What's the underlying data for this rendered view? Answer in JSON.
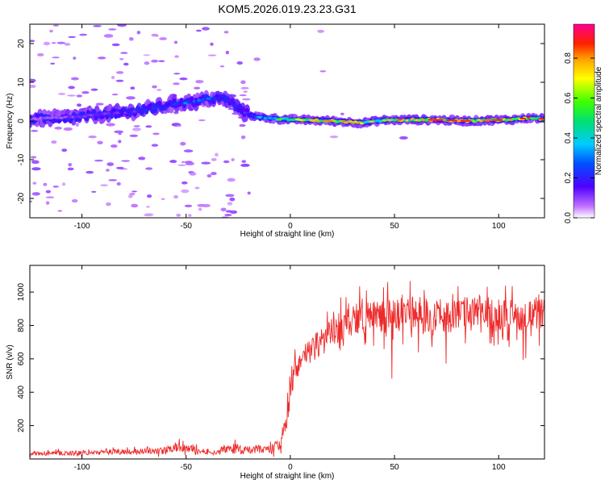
{
  "title": "KOM5.2026.019.23.23.G31",
  "colors": {
    "snr_line": "#ee2a2a",
    "frame": "#000000",
    "background": "#ffffff"
  },
  "chart_data": [
    {
      "type": "heatmap",
      "title": "KOM5.2026.019.23.23.G31",
      "xlabel": "Height of straight line (km)",
      "ylabel": "Frequency (Hz)",
      "xlim": [
        -125,
        122
      ],
      "ylim": [
        -25,
        25
      ],
      "xticks": [
        -100,
        -50,
        0,
        50,
        100
      ],
      "yticks": [
        -20,
        -10,
        0,
        10,
        20
      ],
      "colorbar": {
        "label": "Normalized spectral amplitude",
        "range": [
          0,
          0.97
        ],
        "ticks": [
          0.0,
          0.2,
          0.4,
          0.6,
          0.8
        ],
        "colormap": "rainbow (white-violet-blue-cyan-green-yellow-red-magenta)"
      },
      "ridge": {
        "description": "dominant frequency ridge",
        "x": [
          -125,
          -110,
          -95,
          -85,
          -75,
          -65,
          -55,
          -45,
          -38,
          -30,
          -22,
          -15,
          -5,
          5,
          20,
          35,
          45,
          55,
          70,
          85,
          95,
          105,
          115,
          122
        ],
        "freq": [
          0.5,
          0.8,
          1.5,
          2.0,
          2.5,
          3.5,
          4.5,
          5.0,
          5.8,
          5.5,
          2.0,
          1.0,
          0.5,
          0.3,
          0.0,
          -0.5,
          0.2,
          0.3,
          0.3,
          0.0,
          0.2,
          0.3,
          0.8,
          0.5
        ],
        "amplitude": [
          0.1,
          0.12,
          0.15,
          0.18,
          0.2,
          0.25,
          0.3,
          0.35,
          0.3,
          0.25,
          0.2,
          0.35,
          0.5,
          0.65,
          0.75,
          0.7,
          0.65,
          0.8,
          0.9,
          0.8,
          0.75,
          0.85,
          0.9,
          0.8
        ]
      },
      "grid": false
    },
    {
      "type": "line",
      "xlabel": "Height of straight line (km)",
      "ylabel": "SNR (v/v)",
      "xlim": [
        -125,
        122
      ],
      "ylim": [
        0,
        1160
      ],
      "xticks": [
        -100,
        -50,
        0,
        50,
        100
      ],
      "yticks": [
        200,
        400,
        600,
        800,
        1000
      ],
      "series": [
        {
          "x": [
            -125,
            -110,
            -100,
            -90,
            -80,
            -70,
            -60,
            -55,
            -50,
            -45,
            -40,
            -35,
            -30,
            -25,
            -20,
            -15,
            -10,
            -5,
            -2,
            0,
            2,
            5,
            10,
            15,
            20,
            25,
            30,
            35,
            40,
            50,
            60,
            70,
            80,
            90,
            100,
            110,
            122
          ],
          "values": [
            30,
            35,
            35,
            40,
            45,
            45,
            50,
            70,
            60,
            50,
            45,
            40,
            70,
            60,
            50,
            60,
            60,
            80,
            200,
            400,
            520,
            600,
            650,
            700,
            750,
            800,
            840,
            850,
            860,
            860,
            870,
            860,
            860,
            880,
            870,
            860,
            870
          ],
          "noise": [
            15,
            20,
            20,
            20,
            25,
            25,
            30,
            40,
            35,
            30,
            20,
            20,
            50,
            50,
            35,
            40,
            35,
            50,
            80,
            100,
            100,
            100,
            110,
            120,
            130,
            130,
            130,
            140,
            140,
            150,
            150,
            140,
            150,
            150,
            140,
            130,
            130
          ]
        }
      ],
      "grid": false
    }
  ]
}
